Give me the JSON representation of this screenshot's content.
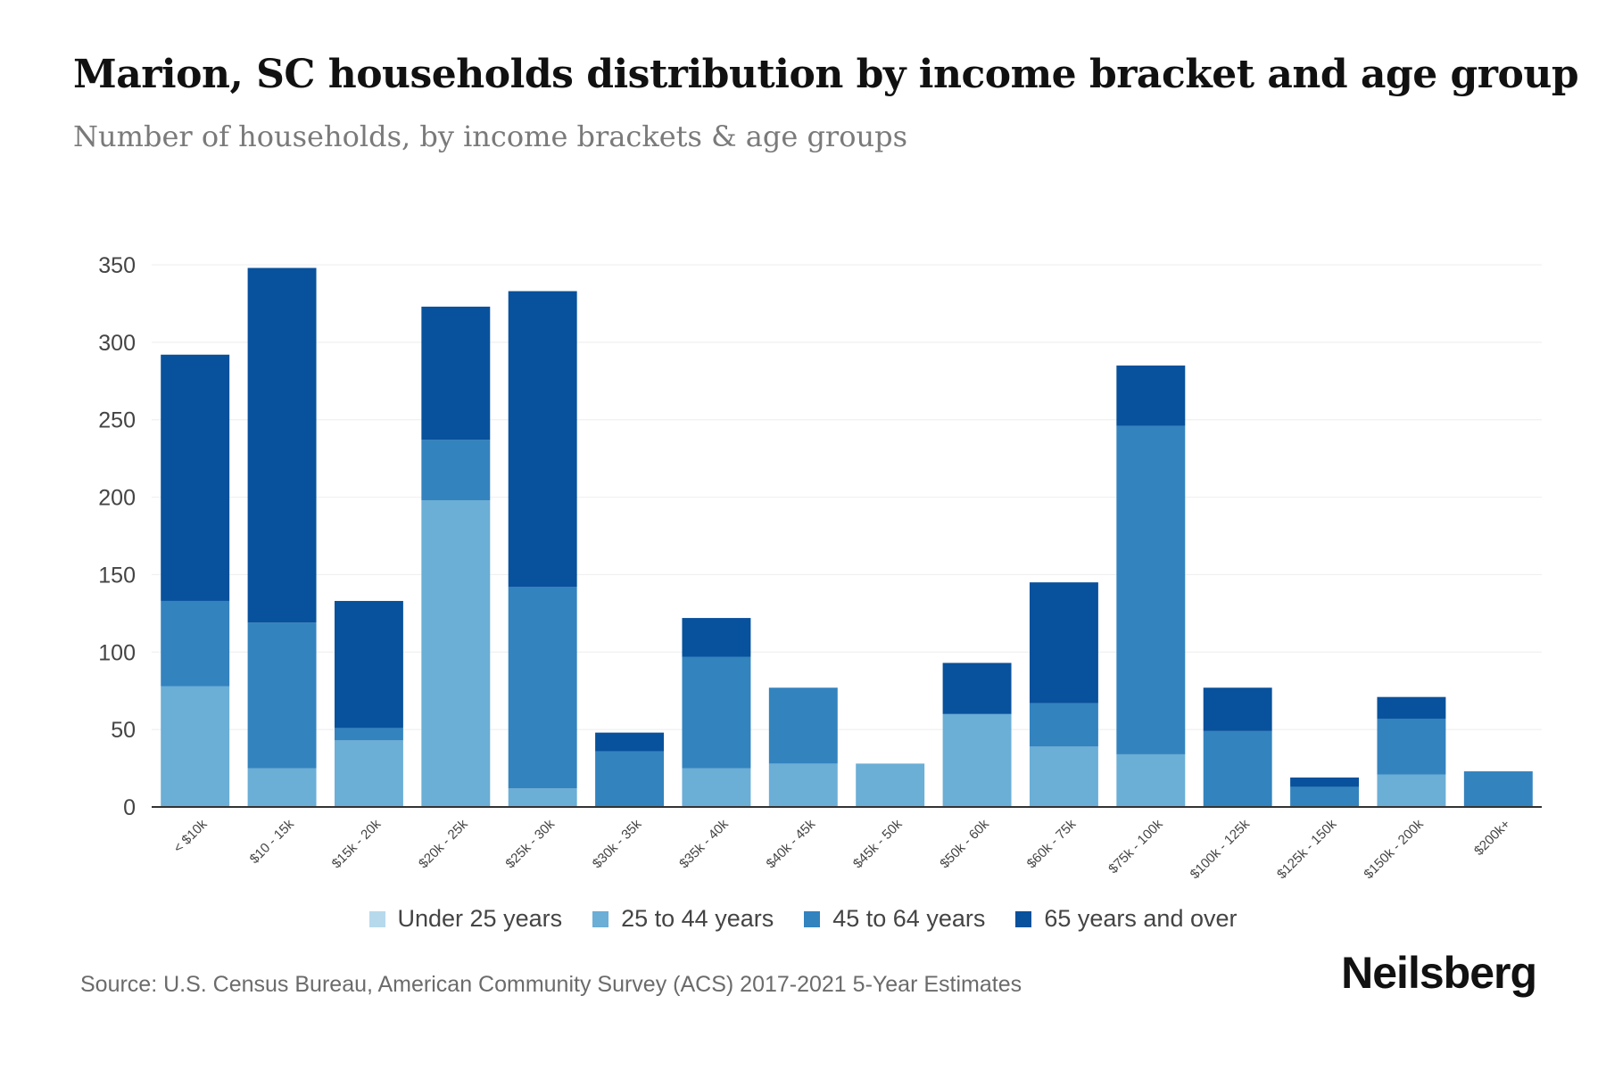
{
  "title": "Marion, SC households distribution by income bracket and age group",
  "subtitle": "Number of households, by income brackets & age groups",
  "source": "Source: U.S. Census Bureau, American Community Survey (ACS) 2017-2021 5-Year Estimates",
  "brand": "Neilsberg",
  "colors": {
    "under25": "#b7d9ec",
    "age25to44": "#6baed6",
    "age45to64": "#3383be",
    "age65plus": "#08519c",
    "grid": "#eeeeee",
    "axis": "#333333",
    "tick_text": "#444444"
  },
  "chart_data": {
    "type": "bar",
    "stacked": true,
    "title": "Marion, SC households distribution by income bracket and age group",
    "xlabel": "",
    "ylabel": "",
    "ylim": [
      0,
      350
    ],
    "yticks": [
      0,
      50,
      100,
      150,
      200,
      250,
      300,
      350
    ],
    "grid": true,
    "legend_position": "bottom-center",
    "categories": [
      "< $10k",
      "$10 - 15k",
      "$15k - 20k",
      "$20k - 25k",
      "$25k - 30k",
      "$30k - 35k",
      "$35k - 40k",
      "$40k - 45k",
      "$45k - 50k",
      "$50k - 60k",
      "$60k - 75k",
      "$75k - 100k",
      "$100k - 125k",
      "$125k - 150k",
      "$150k - 200k",
      "$200k+"
    ],
    "series": [
      {
        "name": "Under 25 years",
        "color_key": "under25",
        "values": [
          0,
          0,
          0,
          0,
          0,
          0,
          0,
          0,
          0,
          0,
          0,
          0,
          0,
          0,
          0,
          0
        ]
      },
      {
        "name": "25 to 44 years",
        "color_key": "age25to44",
        "values": [
          78,
          25,
          43,
          198,
          12,
          0,
          25,
          28,
          28,
          60,
          39,
          34,
          0,
          0,
          21,
          0
        ]
      },
      {
        "name": "45 to 64 years",
        "color_key": "age45to64",
        "values": [
          55,
          94,
          8,
          39,
          130,
          36,
          72,
          49,
          0,
          0,
          28,
          212,
          49,
          13,
          36,
          23
        ]
      },
      {
        "name": "65 years and over",
        "color_key": "age65plus",
        "values": [
          159,
          229,
          82,
          86,
          191,
          12,
          25,
          0,
          0,
          33,
          78,
          39,
          28,
          6,
          14,
          0
        ]
      }
    ]
  }
}
